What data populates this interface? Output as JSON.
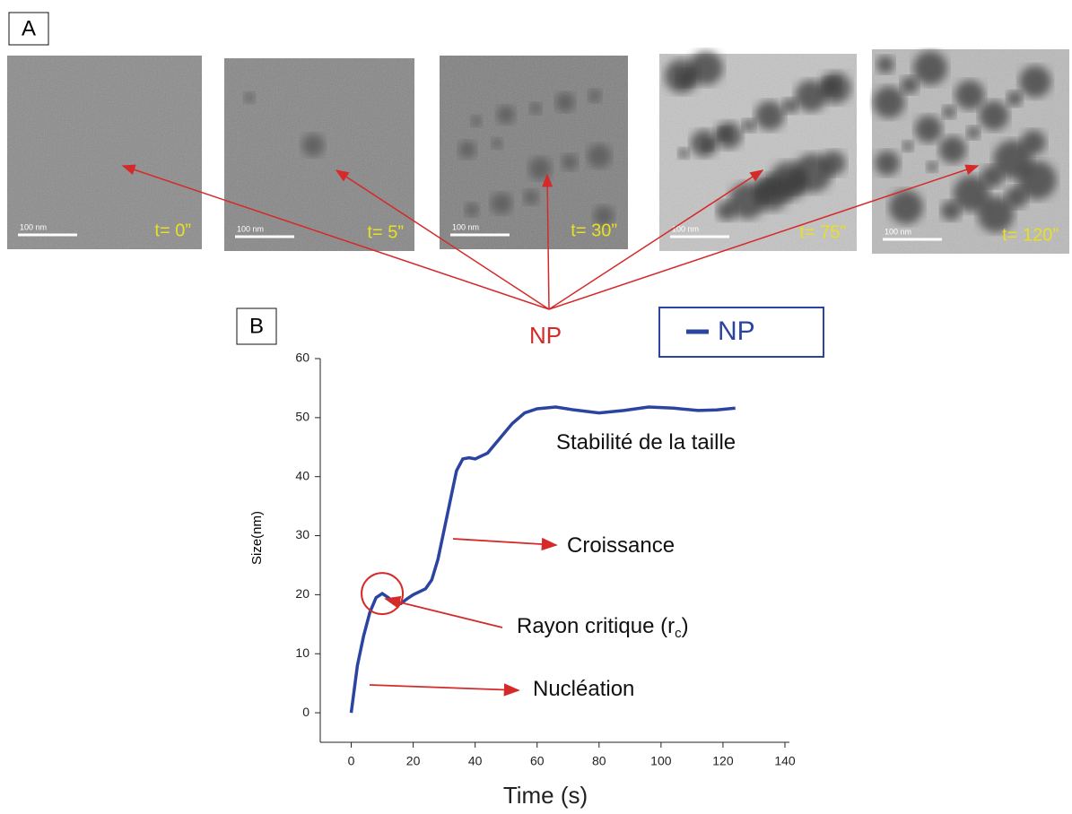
{
  "panel_a": {
    "label": "A",
    "arrow_label": "NP",
    "images": [
      {
        "time": "t= 0”",
        "scale": "100 nm"
      },
      {
        "time": "t= 5”",
        "scale": "100 nm"
      },
      {
        "time": "t= 30”",
        "scale": "100 nm"
      },
      {
        "time": "t= 75”",
        "scale": "100 nm"
      },
      {
        "time": "t= 120”",
        "scale": "100 nm"
      }
    ]
  },
  "chart_data": {
    "type": "line",
    "panel_label": "B",
    "x_label": "Time (s)",
    "y_label": "Size(nm)",
    "xlim": [
      -10,
      140
    ],
    "ylim": [
      -5,
      60
    ],
    "xticks": [
      0,
      20,
      40,
      60,
      80,
      100,
      120,
      140
    ],
    "yticks": [
      0,
      10,
      20,
      30,
      40,
      50,
      60
    ],
    "series": [
      {
        "name": "NP",
        "color": "#2a44a0",
        "x": [
          0,
          2,
          4,
          6,
          8,
          10,
          12,
          14,
          16,
          18,
          20,
          24,
          26,
          28,
          30,
          32,
          34,
          36,
          38,
          40,
          44,
          48,
          52,
          56,
          60,
          66,
          72,
          80,
          88,
          96,
          104,
          112,
          118,
          124
        ],
        "values": [
          0,
          8,
          13,
          17,
          19.5,
          20.2,
          19.5,
          18.5,
          18.5,
          19.3,
          20,
          21,
          22.5,
          26,
          31,
          36,
          41,
          43,
          43.2,
          43,
          44,
          46.5,
          49,
          50.8,
          51.5,
          51.8,
          51.3,
          50.8,
          51.2,
          51.8,
          51.6,
          51.2,
          51.3,
          51.6
        ]
      }
    ],
    "annotations": [
      {
        "text": "Stabilité de la taille"
      },
      {
        "text": "Croissance"
      },
      {
        "text": "Rayon critique (r",
        "subscript": "c",
        "suffix": ")"
      },
      {
        "text": "Nucléation"
      }
    ]
  }
}
